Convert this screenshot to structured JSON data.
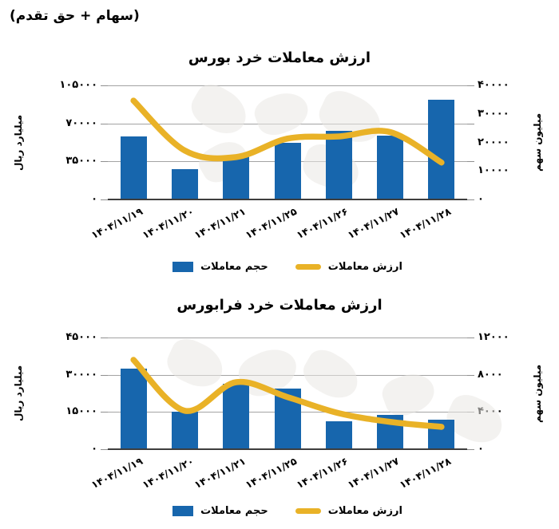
{
  "page": {
    "header_note": "(سهام + حق تقدم)"
  },
  "colors": {
    "bar": "#1766ad",
    "line": "#e9b227",
    "grid": "#a3a3a3",
    "baseline": "#3d3d3d",
    "text": "#000000"
  },
  "legend": {
    "volume_label": "حجم معاملات",
    "value_label": "ارزش معاملات"
  },
  "chart_data": [
    {
      "type": "bar",
      "subtype": "combo-bar-line",
      "title": "ارزش معاملات خرد بورس",
      "categories": [
        "۱۴۰۴/۱۱/۱۹",
        "۱۴۰۴/۱۱/۲۰",
        "۱۴۰۴/۱۱/۲۱",
        "۱۴۰۴/۱۱/۲۵",
        "۱۴۰۴/۱۱/۲۶",
        "۱۴۰۴/۱۱/۲۷",
        "۱۴۰۴/۱۱/۲۸"
      ],
      "series": [
        {
          "name": "حجم معاملات",
          "render": "bar",
          "axis": "right",
          "unit": "میلیون سهم",
          "values": [
            22000,
            10500,
            15000,
            20000,
            24000,
            22500,
            35000
          ]
        },
        {
          "name": "ارزش معاملات",
          "render": "line",
          "axis": "left",
          "unit": "میلیارد ریال",
          "values": [
            91000,
            45000,
            39000,
            56000,
            58000,
            62000,
            34000
          ]
        }
      ],
      "left_axis": {
        "title": "میلیارد ریال",
        "min": 0,
        "max": 105000,
        "ticks": [
          {
            "label": "۱۰۵۰۰۰",
            "value": 105000
          },
          {
            "label": "۷۰۰۰۰",
            "value": 70000
          },
          {
            "label": "۳۵۰۰۰",
            "value": 35000
          },
          {
            "label": "۰",
            "value": 0
          }
        ]
      },
      "right_axis": {
        "title": "میلیون سهم",
        "min": 0,
        "max": 40000,
        "ticks": [
          {
            "label": "۴۰۰۰۰",
            "value": 40000
          },
          {
            "label": "۳۰۰۰۰",
            "value": 30000
          },
          {
            "label": "۲۰۰۰۰",
            "value": 20000
          },
          {
            "label": "۱۰۰۰۰",
            "value": 10000
          },
          {
            "label": "۰",
            "value": 0
          }
        ]
      },
      "grid": true,
      "legend_position": "bottom"
    },
    {
      "type": "bar",
      "subtype": "combo-bar-line",
      "title": "ارزش معاملات خرد فرابورس",
      "categories": [
        "۱۴۰۴/۱۱/۱۹",
        "۱۴۰۴/۱۱/۲۰",
        "۱۴۰۴/۱۱/۲۱",
        "۱۴۰۴/۱۱/۲۵",
        "۱۴۰۴/۱۱/۲۶",
        "۱۴۰۴/۱۱/۲۷",
        "۱۴۰۴/۱۱/۲۸"
      ],
      "series": [
        {
          "name": "حجم معاملات",
          "render": "bar",
          "axis": "right",
          "unit": "میلیون سهم",
          "values": [
            8700,
            4000,
            7000,
            6500,
            3000,
            3700,
            3200
          ]
        },
        {
          "name": "ارزش معاملات",
          "render": "line",
          "axis": "left",
          "unit": "میلیارد ریال",
          "values": [
            36000,
            15500,
            27000,
            21000,
            14500,
            11000,
            9000
          ]
        }
      ],
      "left_axis": {
        "title": "میلیارد ریال",
        "min": 0,
        "max": 45000,
        "ticks": [
          {
            "label": "۴۵۰۰۰",
            "value": 45000
          },
          {
            "label": "۳۰۰۰۰",
            "value": 30000
          },
          {
            "label": "۱۵۰۰۰",
            "value": 15000
          },
          {
            "label": "۰",
            "value": 0
          }
        ]
      },
      "right_axis": {
        "title": "میلیون سهم",
        "min": 0,
        "max": 12000,
        "ticks": [
          {
            "label": "۱۲۰۰۰",
            "value": 12000
          },
          {
            "label": "۸۰۰۰",
            "value": 8000
          },
          {
            "label": "۴۰۰۰",
            "value": 4000
          },
          {
            "label": "۰",
            "value": 0
          }
        ]
      },
      "grid": true,
      "legend_position": "bottom"
    }
  ]
}
